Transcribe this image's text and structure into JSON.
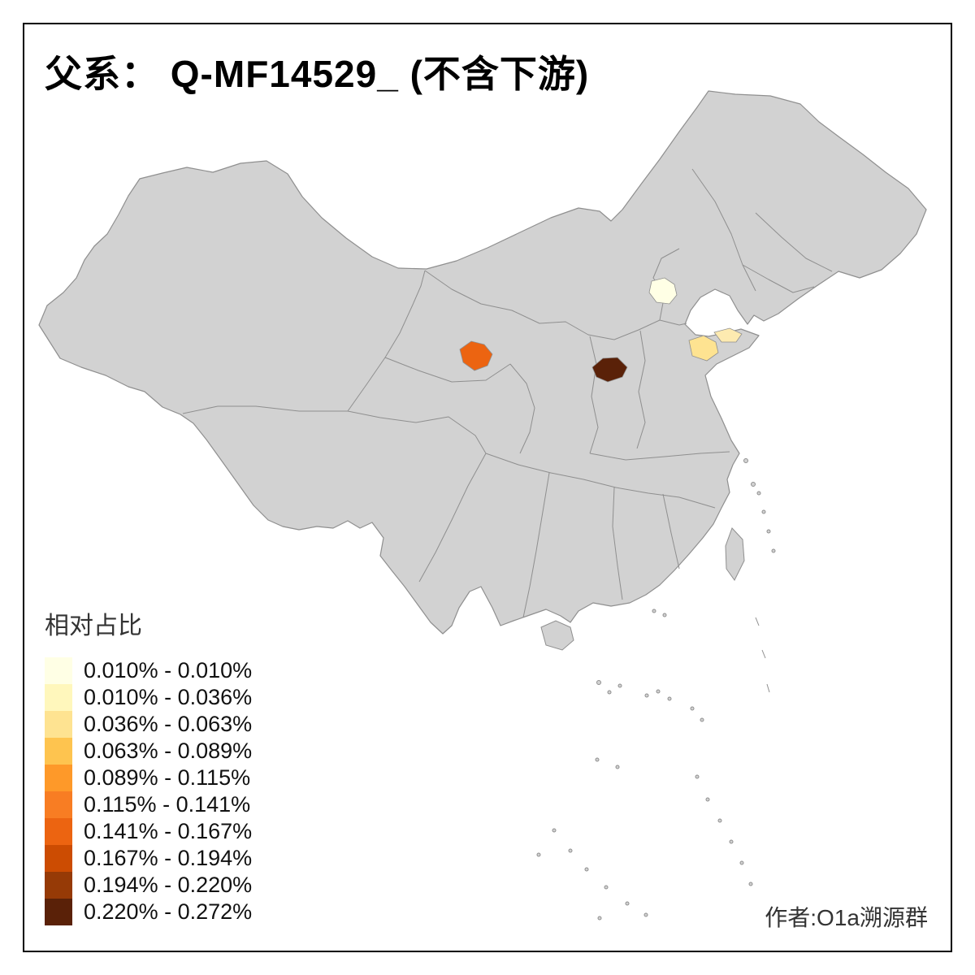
{
  "title": "父系： Q-MF14529_ (不含下游)",
  "legend": {
    "title": "相对占比",
    "items": [
      {
        "label": "0.010% - 0.010%",
        "color": "#ffffe5"
      },
      {
        "label": "0.010% - 0.036%",
        "color": "#fff7bc"
      },
      {
        "label": "0.036% - 0.063%",
        "color": "#fee391"
      },
      {
        "label": "0.063% - 0.089%",
        "color": "#fec44f"
      },
      {
        "label": "0.089% - 0.115%",
        "color": "#fe9929"
      },
      {
        "label": "0.115% - 0.141%",
        "color": "#f87d23"
      },
      {
        "label": "0.141% - 0.167%",
        "color": "#ec6411"
      },
      {
        "label": "0.167% - 0.194%",
        "color": "#cc4c02"
      },
      {
        "label": "0.194% - 0.220%",
        "color": "#963a06"
      },
      {
        "label": "0.220% - 0.272%",
        "color": "#5a2108"
      }
    ]
  },
  "map": {
    "land_fill": "#d2d2d2",
    "border_color": "#8f8f8f",
    "regions": [
      {
        "id": "region-beijing",
        "color": "#ffffe5"
      },
      {
        "id": "region-northwest-orange",
        "color": "#ec6411"
      },
      {
        "id": "region-central-dark",
        "color": "#5a2108"
      },
      {
        "id": "region-shandong-west",
        "color": "#fee391"
      },
      {
        "id": "region-shandong-peninsula",
        "color": "#fdeab0"
      }
    ]
  },
  "credit": "作者:O1a溯源群"
}
